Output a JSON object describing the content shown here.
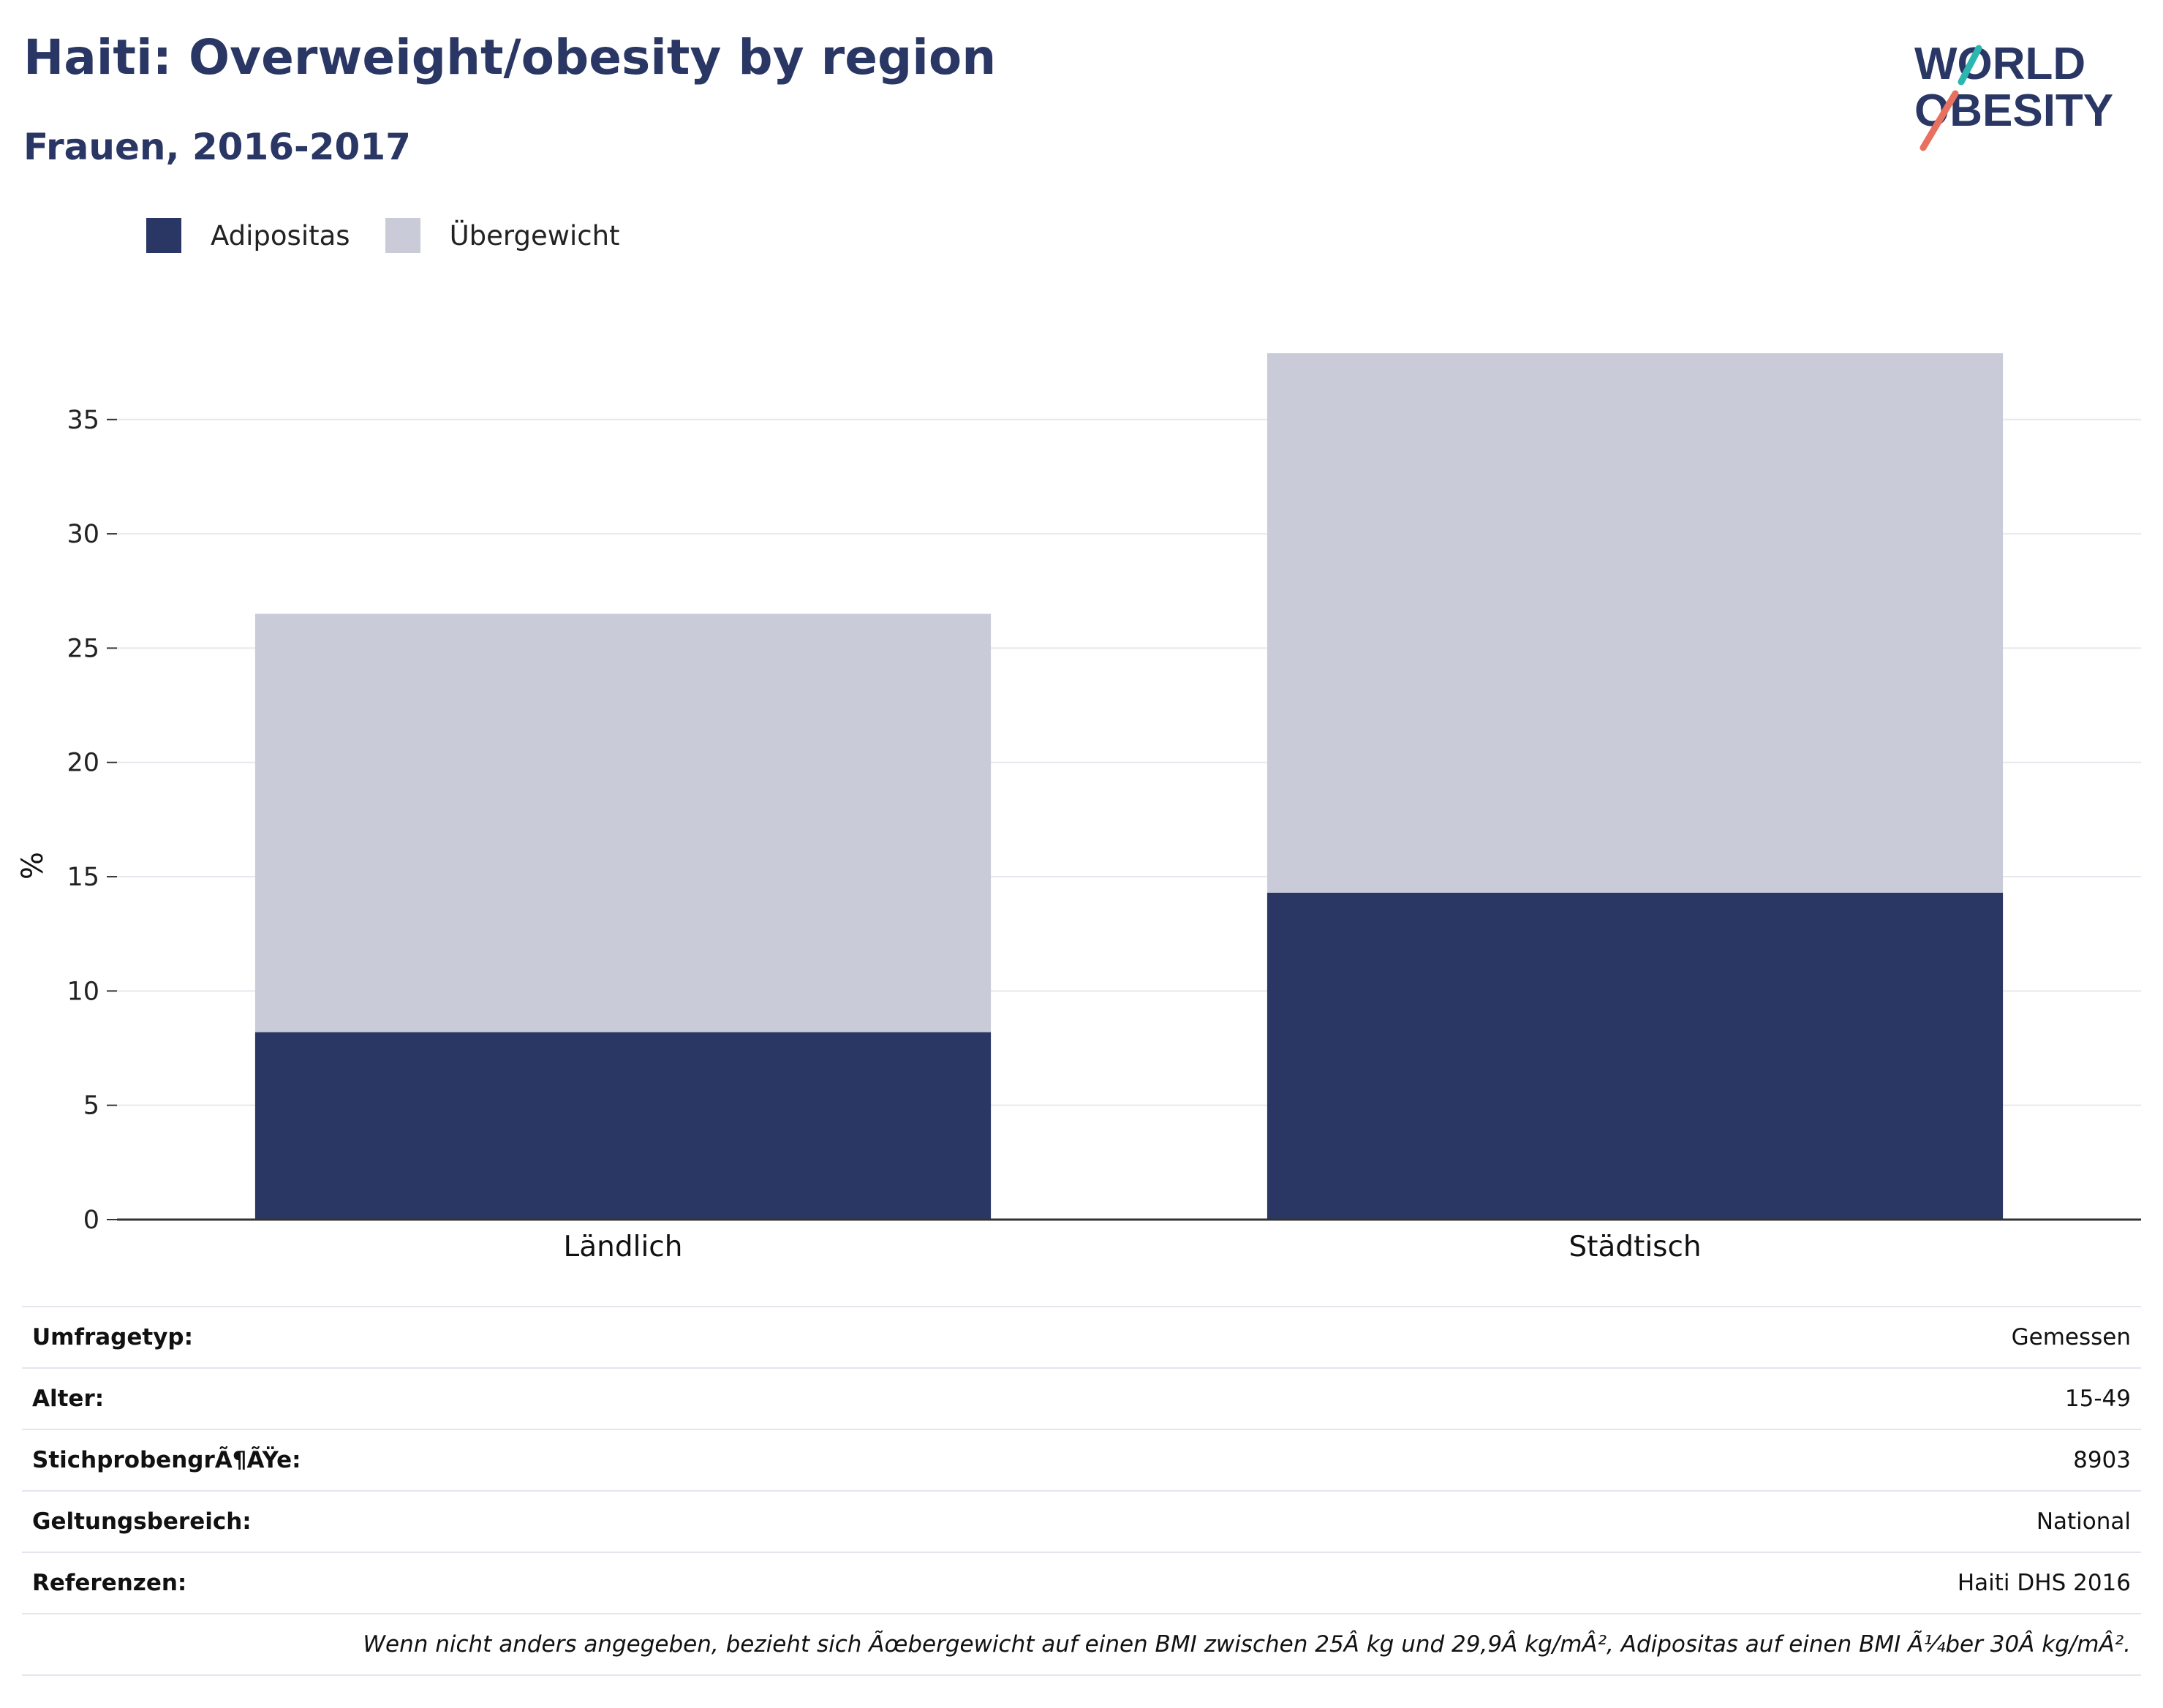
{
  "header": {
    "title": "Haiti: Overweight/obesity by region",
    "subtitle": "Frauen, 2016-2017"
  },
  "logo": {
    "line1": "WORLD",
    "line2": "OBESITY",
    "colors": {
      "text": "#2a3764",
      "teal": "#2bb6b0",
      "coral": "#e8705e"
    }
  },
  "legend": [
    {
      "label": "Adipositas",
      "color": "#2a3764"
    },
    {
      "label": "Übergewicht",
      "color": "#c9ccd8"
    }
  ],
  "chart_data": {
    "type": "bar",
    "stacked": true,
    "categories": [
      "Ländlich",
      "Städtisch"
    ],
    "series": [
      {
        "name": "Adipositas",
        "color": "#2a3764",
        "values": [
          8.2,
          14.3
        ]
      },
      {
        "name": "Übergewicht",
        "color": "#c9ccd8",
        "values": [
          18.3,
          23.6
        ]
      }
    ],
    "xlabel": "",
    "ylabel": "%",
    "ylim": [
      0,
      38
    ],
    "yticks": [
      0,
      5,
      10,
      15,
      20,
      25,
      30,
      35
    ],
    "grid": true,
    "legend_position": "top-left"
  },
  "info": [
    {
      "label": "Umfragetyp:",
      "value": "Gemessen"
    },
    {
      "label": "Alter:",
      "value": "15-49"
    },
    {
      "label": "StichprobengrÃ¶ÃŸe:",
      "value": "8903"
    },
    {
      "label": "Geltungsbereich:",
      "value": "National"
    },
    {
      "label": "Referenzen:",
      "value": "Haiti DHS 2016"
    }
  ],
  "note": "Wenn nicht anders angegeben, bezieht sich Ãœbergewicht auf einen BMI zwischen 25Â kg und 29,9Â kg/mÂ², Adipositas auf einen BMI Ã¼ber 30Â kg/mÂ²."
}
